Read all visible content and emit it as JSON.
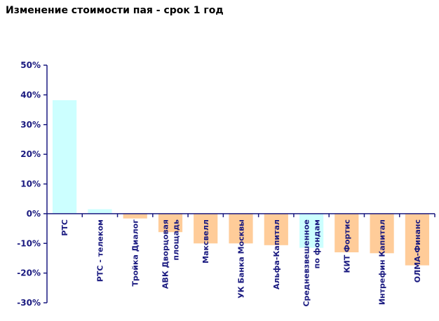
{
  "chart_data": {
    "type": "bar",
    "title": "Изменение стоимости пая - срок 1 год",
    "xlabel": "",
    "ylabel": "",
    "ylim": [
      -30,
      50
    ],
    "yticks": [
      "50%",
      "40%",
      "30%",
      "20%",
      "10%",
      "0%",
      "-10%",
      "-20%",
      "-30%"
    ],
    "grid": false,
    "legend": "none",
    "categories": [
      [
        "РТС"
      ],
      [
        "РТС - телеком"
      ],
      [
        "Тройка Диалог"
      ],
      [
        "АВК Дворцовая",
        "площадь"
      ],
      [
        "Максвелл"
      ],
      [
        "УК Банка Москвы"
      ],
      [
        "Альфа-Капитал"
      ],
      [
        "Средневзвешенное",
        "по фондам"
      ],
      [
        "КИТ Фортис"
      ],
      [
        "Интрефин Капитал"
      ],
      [
        "ОЛМА-Финанс"
      ]
    ],
    "values": [
      38.2,
      1.5,
      -1.6,
      -6.2,
      -10.0,
      -10.0,
      -10.6,
      -11.5,
      -13.0,
      -13.3,
      -17.4
    ],
    "colors": [
      "#ccffff",
      "#ccffff",
      "#ffcc99",
      "#ffcc99",
      "#ffcc99",
      "#ffcc99",
      "#ffcc99",
      "#ccffff",
      "#ffcc99",
      "#ffcc99",
      "#ffcc99"
    ],
    "axis_color": "#1a1a80"
  }
}
